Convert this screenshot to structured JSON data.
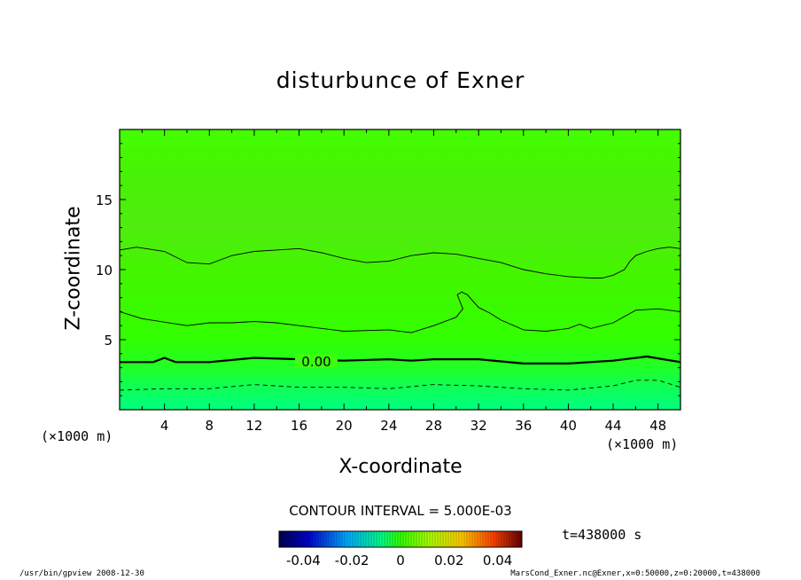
{
  "chart_data": {
    "type": "heatmap",
    "title": "disturbunce of Exner",
    "xlabel": "X-coordinate",
    "ylabel": "Z-coordinate",
    "x_unit": "(×1000 m)",
    "xlim": [
      0,
      50
    ],
    "ylim": [
      0,
      20
    ],
    "x_ticks": [
      "4",
      "8",
      "12",
      "16",
      "20",
      "24",
      "28",
      "32",
      "36",
      "40",
      "44",
      "48"
    ],
    "y_ticks": [
      "5",
      "10",
      "15"
    ],
    "contour_interval_label": "CONTOUR INTERVAL = 5.000E-03",
    "zero_contour_label": "0.00",
    "time_label": "t=438000 s",
    "colorbar_ticks": [
      "-0.04",
      "-0.02",
      "0",
      "0.02",
      "0.04"
    ],
    "colorbar_range": [
      -0.05,
      0.05
    ],
    "colors": {
      "bottom_band": "#00ff66",
      "mid_band": "#33ff00",
      "upper_band": "#55ee11",
      "top_band": "#44ff00",
      "contour": "#000000"
    },
    "contours": [
      {
        "level": -0.005,
        "style": "dashed",
        "points": [
          [
            0,
            1.4
          ],
          [
            4,
            1.5
          ],
          [
            8,
            1.5
          ],
          [
            12,
            1.8
          ],
          [
            16,
            1.6
          ],
          [
            20,
            1.6
          ],
          [
            24,
            1.5
          ],
          [
            28,
            1.8
          ],
          [
            32,
            1.7
          ],
          [
            36,
            1.5
          ],
          [
            40,
            1.4
          ],
          [
            44,
            1.7
          ],
          [
            46,
            2.1
          ],
          [
            48,
            2.1
          ],
          [
            50,
            1.6
          ]
        ]
      },
      {
        "level": 0.0,
        "style": "bold",
        "points": [
          [
            0,
            3.4
          ],
          [
            3,
            3.4
          ],
          [
            4,
            3.7
          ],
          [
            5,
            3.4
          ],
          [
            8,
            3.4
          ],
          [
            12,
            3.7
          ],
          [
            16,
            3.6
          ],
          [
            20,
            3.5
          ],
          [
            24,
            3.6
          ],
          [
            26,
            3.5
          ],
          [
            28,
            3.6
          ],
          [
            32,
            3.6
          ],
          [
            36,
            3.3
          ],
          [
            40,
            3.3
          ],
          [
            44,
            3.5
          ],
          [
            47,
            3.8
          ],
          [
            50,
            3.4
          ]
        ]
      },
      {
        "level": 0.005,
        "style": "solid",
        "points": [
          [
            0,
            7.0
          ],
          [
            2,
            6.5
          ],
          [
            6,
            6.0
          ],
          [
            8,
            6.2
          ],
          [
            10,
            6.2
          ],
          [
            12,
            6.3
          ],
          [
            14,
            6.2
          ],
          [
            16,
            6.0
          ],
          [
            20,
            5.6
          ],
          [
            24,
            5.7
          ],
          [
            26,
            5.5
          ],
          [
            28,
            6.0
          ],
          [
            30,
            6.6
          ],
          [
            30.6,
            7.2
          ],
          [
            30.1,
            8.2
          ],
          [
            30.5,
            8.4
          ],
          [
            31,
            8.2
          ],
          [
            32,
            7.3
          ],
          [
            33,
            6.9
          ],
          [
            34,
            6.4
          ],
          [
            36,
            5.7
          ],
          [
            38,
            5.6
          ],
          [
            40,
            5.8
          ],
          [
            41,
            6.1
          ],
          [
            42,
            5.8
          ],
          [
            44,
            6.2
          ],
          [
            46,
            7.1
          ],
          [
            48,
            7.2
          ],
          [
            50,
            7.0
          ]
        ]
      },
      {
        "level": 0.01,
        "style": "solid",
        "points": [
          [
            0,
            11.4
          ],
          [
            1.5,
            11.6
          ],
          [
            4,
            11.3
          ],
          [
            6,
            10.5
          ],
          [
            8,
            10.4
          ],
          [
            10,
            11.0
          ],
          [
            12,
            11.3
          ],
          [
            14,
            11.4
          ],
          [
            16,
            11.5
          ],
          [
            18,
            11.2
          ],
          [
            20,
            10.8
          ],
          [
            22,
            10.5
          ],
          [
            24,
            10.6
          ],
          [
            26,
            11.0
          ],
          [
            28,
            11.2
          ],
          [
            30,
            11.1
          ],
          [
            32,
            10.8
          ],
          [
            34,
            10.5
          ],
          [
            36,
            10.0
          ],
          [
            38,
            9.7
          ],
          [
            40,
            9.5
          ],
          [
            42,
            9.4
          ],
          [
            43,
            9.4
          ],
          [
            44,
            9.6
          ],
          [
            45,
            10.0
          ],
          [
            45.5,
            10.6
          ],
          [
            46,
            11.0
          ],
          [
            47,
            11.3
          ],
          [
            48,
            11.5
          ],
          [
            49,
            11.6
          ],
          [
            50,
            11.5
          ]
        ]
      }
    ]
  },
  "footer": {
    "left": "/usr/bin/gpview   2008-12-30",
    "right": "MarsCond_Exner.nc@Exner,x=0:50000,z=0:20000,t=438000"
  }
}
